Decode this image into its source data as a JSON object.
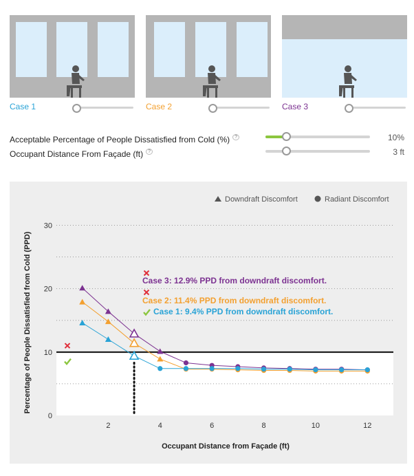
{
  "cases": [
    {
      "label": "Case 1",
      "color": "#29a3d6",
      "window_style": "three-windows"
    },
    {
      "label": "Case 2",
      "color": "#f3a030",
      "window_style": "three-windows"
    },
    {
      "label": "Case 3",
      "color": "#7c3291",
      "window_style": "full-glazing"
    }
  ],
  "params": {
    "ppd_label": "Acceptable Percentage of People Dissatisfied from Cold (%)",
    "ppd_value": "10%",
    "ppd_fraction": 0.2,
    "distance_label": "Occupant Distance From Façade (ft)",
    "distance_value": "3 ft",
    "distance_fraction": 0.2,
    "help_glyph": "?"
  },
  "legend": {
    "downdraft": "Downdraft Discomfort",
    "radiant": "Radiant Discomfort"
  },
  "chart_data": {
    "type": "line",
    "xlabel": "Occupant Distance from Façade (ft)",
    "ylabel": "Percentage of People Dissatisfied from Cold (PPD)",
    "xlim": [
      0,
      13
    ],
    "ylim": [
      0,
      32
    ],
    "xticks": [
      2,
      4,
      6,
      8,
      10,
      12
    ],
    "yticks": [
      0,
      10,
      20,
      30
    ],
    "grid": "dotted horizontal",
    "threshold": 10,
    "selected_distance": 3,
    "series": [
      {
        "case": "Case 3",
        "color": "#7c3291",
        "x": [
          1,
          2,
          3,
          4,
          5,
          6,
          7,
          8,
          9,
          10,
          11,
          12
        ],
        "y": [
          20.1,
          16.4,
          12.9,
          10.1,
          8.3,
          7.9,
          7.7,
          7.5,
          7.4,
          7.3,
          7.3,
          7.2
        ],
        "markers": [
          "tri",
          "tri",
          "tri",
          "tri",
          "dot",
          "dot",
          "dot",
          "dot",
          "dot",
          "dot",
          "dot",
          "dot"
        ]
      },
      {
        "case": "Case 2",
        "color": "#f3a030",
        "x": [
          1,
          2,
          3,
          4,
          5,
          6,
          7,
          8,
          9,
          10,
          11,
          12
        ],
        "y": [
          17.9,
          14.8,
          11.4,
          8.9,
          7.3,
          7.3,
          7.2,
          7.1,
          7.1,
          7.0,
          7.0,
          7.0
        ],
        "markers": [
          "tri",
          "tri",
          "tri",
          "tri",
          "dot",
          "dot",
          "dot",
          "dot",
          "dot",
          "dot",
          "dot",
          "dot"
        ]
      },
      {
        "case": "Case 1",
        "color": "#29a3d6",
        "x": [
          1,
          2,
          3,
          4,
          5,
          6,
          7,
          8,
          9,
          10,
          11,
          12
        ],
        "y": [
          14.6,
          12.0,
          9.4,
          7.4,
          7.4,
          7.4,
          7.4,
          7.3,
          7.3,
          7.2,
          7.2,
          7.2
        ],
        "markers": [
          "tri",
          "tri",
          "tri",
          "dot",
          "dot",
          "dot",
          "dot",
          "dot",
          "dot",
          "dot",
          "dot",
          "dot"
        ]
      }
    ],
    "annotations": [
      {
        "text": "Case 3: 12.9% PPD from downdraft discomfort.",
        "color": "#7c3291",
        "status": "fail"
      },
      {
        "text": "Case 2: 11.4% PPD from downdraft discomfort.",
        "color": "#f3a030",
        "status": "fail"
      },
      {
        "text": "Case 1: 9.4% PPD from downdraft discomfort.",
        "color": "#29a3d6",
        "status": "pass"
      }
    ],
    "threshold_markers": [
      {
        "status": "fail",
        "value": 11
      },
      {
        "status": "pass",
        "value": 8.5
      }
    ]
  }
}
